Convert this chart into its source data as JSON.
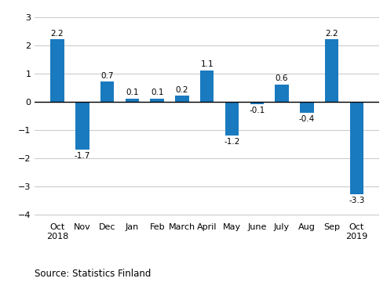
{
  "categories": [
    "Oct\n2018",
    "Nov",
    "Dec",
    "Jan",
    "Feb",
    "March",
    "April",
    "May",
    "June",
    "July",
    "Aug",
    "Sep",
    "Oct\n2019"
  ],
  "values": [
    2.2,
    -1.7,
    0.7,
    0.1,
    0.1,
    0.2,
    1.1,
    -1.2,
    -0.1,
    0.6,
    -0.4,
    2.2,
    -3.3
  ],
  "bar_color": "#1a7abf",
  "ylim": [
    -4.2,
    3.3
  ],
  "yticks": [
    -4,
    -3,
    -2,
    -1,
    0,
    1,
    2,
    3
  ],
  "source_text": "Source: Statistics Finland",
  "background_color": "#ffffff",
  "grid_color": "#cccccc",
  "tick_fontsize": 8.0,
  "source_fontsize": 8.5,
  "bar_label_fontsize": 7.5,
  "bar_width": 0.55
}
